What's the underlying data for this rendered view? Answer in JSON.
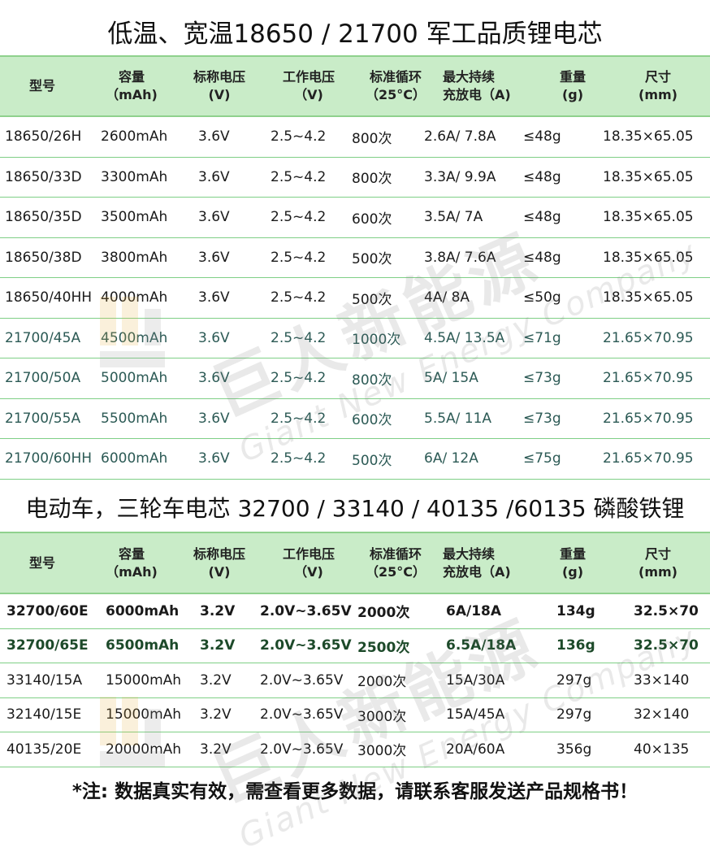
{
  "title1": "低温、宽温18650 / 21700 军工品质锂电芯",
  "title2": "电动车，三轮车电芯 32700 / 33140 / 40135 /60135 磷酸铁锂",
  "headers": [
    {
      "line1": "型号",
      "line2": ""
    },
    {
      "line1": "容量",
      "line2": "（mAh)"
    },
    {
      "line1": "标称电压",
      "line2": "(V)"
    },
    {
      "line1": "工作电压",
      "line2": "（V)"
    },
    {
      "line1": "标准循环",
      "line2": "（25°C）"
    },
    {
      "line1": "最大持续",
      "line2": "充放电（A)"
    },
    {
      "line1": "重量",
      "line2": "(g)"
    },
    {
      "line1": "尺寸",
      "line2": "(mm)"
    }
  ],
  "table1_rows": [
    [
      "18650/26H",
      "2600mAh",
      "3.6V",
      "2.5~4.2",
      "800次",
      "2.6A/ 7.8A",
      "≤48g",
      "18.35×65.05"
    ],
    [
      "18650/33D",
      "3300mAh",
      "3.6V",
      "2.5~4.2",
      "800次",
      "3.3A/ 9.9A",
      "≤48g",
      "18.35×65.05"
    ],
    [
      "18650/35D",
      "3500mAh",
      "3.6V",
      "2.5~4.2",
      "600次",
      "3.5A/ 7A",
      "≤48g",
      "18.35×65.05"
    ],
    [
      "18650/38D",
      "3800mAh",
      "3.6V",
      "2.5~4.2",
      "500次",
      "3.8A/ 7.6A",
      "≤48g",
      "18.35×65.05"
    ],
    [
      "18650/40HH",
      "4000mAh",
      "3.6V",
      "2.5~4.2",
      "500次",
      "4A/ 8A",
      "≤50g",
      "18.35×65.05"
    ],
    [
      "21700/45A",
      "4500mAh",
      "3.6V",
      "2.5~4.2",
      "1000次",
      "4.5A/ 13.5A",
      "≤71g",
      "21.65×70.95"
    ],
    [
      "21700/50A",
      "5000mAh",
      "3.6V",
      "2.5~4.2",
      "800次",
      "5A/ 15A",
      "≤73g",
      "21.65×70.95"
    ],
    [
      "21700/55A",
      "5500mAh",
      "3.6V",
      "2.5~4.2",
      "600次",
      "5.5A/ 11A",
      "≤73g",
      "21.65×70.95"
    ],
    [
      "21700/60HH",
      "6000mAh",
      "3.6V",
      "2.5~4.2",
      "500次",
      "6A/ 12A",
      "≤75g",
      "21.65×70.95"
    ]
  ],
  "table2_rows": [
    [
      "32700/60E",
      "6000mAh",
      "3.2V",
      "2.0V~3.65V",
      "2000次",
      "6A/18A",
      "134g",
      "32.5×70"
    ],
    [
      "32700/65E",
      "6500mAh",
      "3.2V",
      "2.0V~3.65V",
      "2500次",
      "6.5A/18A",
      "136g",
      "32.5×70"
    ],
    [
      "33140/15A",
      "15000mAh",
      "3.2V",
      "2.0V~3.65V",
      "2000次",
      "15A/30A",
      "297g",
      "33×140"
    ],
    [
      "32140/15E",
      "15000mAh",
      "3.2V",
      "2.0V~3.65V",
      "3000次",
      "15A/45A",
      "297g",
      "32×140"
    ],
    [
      "40135/20E",
      "20000mAh",
      "3.2V",
      "2.0V~3.65V",
      "3000次",
      "20A/60A",
      "356g",
      "40×135"
    ]
  ],
  "footnote": "*注: 数据真实有效，需查看更多数据，请联系客服发送产品规格书！",
  "watermark": {
    "main": "巨人新能源",
    "sub": "Giant New Energy Company"
  },
  "colors": {
    "header_bg": "#c9ecc8",
    "line": "#7fcf86",
    "green_text": "#2c5a55"
  }
}
